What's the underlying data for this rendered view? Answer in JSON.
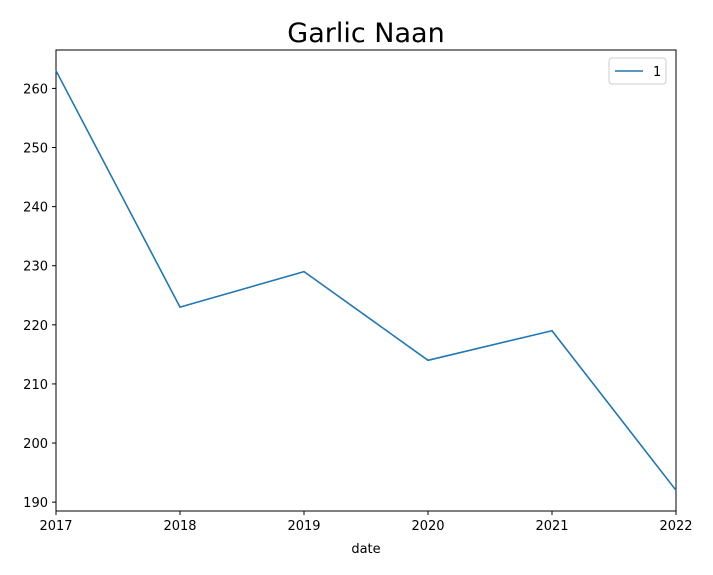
{
  "chart_data": {
    "type": "line",
    "title": "Garlic Naan",
    "xlabel": "date",
    "ylabel": "",
    "x": [
      "2017",
      "2018",
      "2019",
      "2020",
      "2021",
      "2022"
    ],
    "xlim": [
      2017,
      2022
    ],
    "ylim": [
      188.5,
      266.5
    ],
    "yticks": [
      190,
      200,
      210,
      220,
      230,
      240,
      250,
      260
    ],
    "grid": false,
    "legend_position": "top-right",
    "series": [
      {
        "name": "1",
        "color": "#1f77b4",
        "values": [
          263,
          223,
          229,
          214,
          219,
          192
        ]
      }
    ]
  }
}
